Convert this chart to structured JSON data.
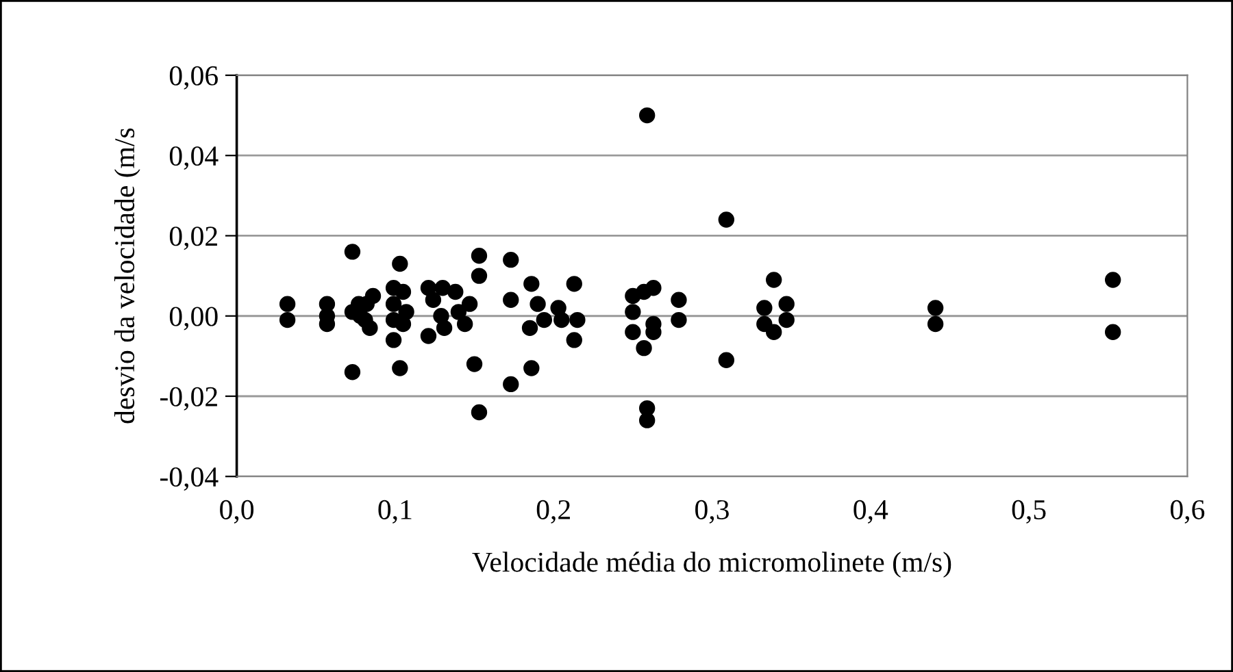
{
  "chart_data": {
    "type": "scatter",
    "xlabel": "Velocidade média do micromolinete (m/s)",
    "ylabel": "desvio da velocidade (m/s",
    "x": [
      0.032,
      0.032,
      0.057,
      0.057,
      0.057,
      0.073,
      0.073,
      0.073,
      0.077,
      0.078,
      0.082,
      0.086,
      0.084,
      0.081,
      0.099,
      0.099,
      0.099,
      0.099,
      0.103,
      0.103,
      0.105,
      0.107,
      0.105,
      0.121,
      0.124,
      0.121,
      0.13,
      0.129,
      0.131,
      0.138,
      0.14,
      0.144,
      0.147,
      0.153,
      0.153,
      0.15,
      0.153,
      0.173,
      0.173,
      0.173,
      0.186,
      0.186,
      0.185,
      0.19,
      0.194,
      0.203,
      0.205,
      0.213,
      0.213,
      0.215,
      0.259,
      0.309,
      0.309,
      0.25,
      0.25,
      0.25,
      0.257,
      0.263,
      0.263,
      0.263,
      0.257,
      0.259,
      0.259,
      0.279,
      0.279,
      0.333,
      0.333,
      0.339,
      0.339,
      0.347,
      0.347,
      0.441,
      0.441,
      0.553,
      0.553
    ],
    "series": [
      {
        "color": "#000000",
        "values": [
          0.003,
          -0.001,
          0.003,
          0.0,
          -0.002,
          0.016,
          -0.014,
          0.001,
          0.003,
          0.0,
          0.003,
          0.005,
          -0.003,
          -0.001,
          0.007,
          0.003,
          -0.001,
          -0.006,
          0.013,
          -0.013,
          0.006,
          0.001,
          -0.002,
          0.007,
          0.004,
          -0.005,
          0.007,
          0.0,
          -0.003,
          0.006,
          0.001,
          -0.002,
          0.003,
          0.015,
          0.01,
          -0.012,
          -0.024,
          0.014,
          0.004,
          -0.017,
          0.008,
          -0.013,
          -0.003,
          0.003,
          -0.001,
          0.002,
          -0.001,
          0.008,
          -0.006,
          -0.001,
          0.05,
          0.024,
          -0.011,
          0.005,
          0.001,
          -0.004,
          0.006,
          0.007,
          -0.002,
          -0.004,
          -0.008,
          -0.023,
          -0.026,
          0.004,
          -0.001,
          0.002,
          -0.002,
          0.009,
          -0.004,
          0.003,
          -0.001,
          0.002,
          -0.002,
          0.009,
          -0.004
        ]
      }
    ],
    "marker": "circle",
    "xlim": [
      0.0,
      0.6
    ],
    "xticks": [
      {
        "value": 0.0,
        "label": "0,0"
      },
      {
        "value": 0.1,
        "label": "0,1"
      },
      {
        "value": 0.2,
        "label": "0,2"
      },
      {
        "value": 0.3,
        "label": "0,3"
      },
      {
        "value": 0.4,
        "label": "0,4"
      },
      {
        "value": 0.5,
        "label": "0,5"
      },
      {
        "value": 0.6,
        "label": "0,6"
      }
    ],
    "ylim": [
      -0.04,
      0.06
    ],
    "yticks": [
      {
        "value": -0.04,
        "label": "-0,04"
      },
      {
        "value": -0.02,
        "label": "-0,02"
      },
      {
        "value": 0.0,
        "label": "0,00"
      },
      {
        "value": 0.02,
        "label": "0,02"
      },
      {
        "value": 0.04,
        "label": "0,04"
      },
      {
        "value": 0.06,
        "label": "0,06"
      }
    ],
    "grid": "y"
  }
}
